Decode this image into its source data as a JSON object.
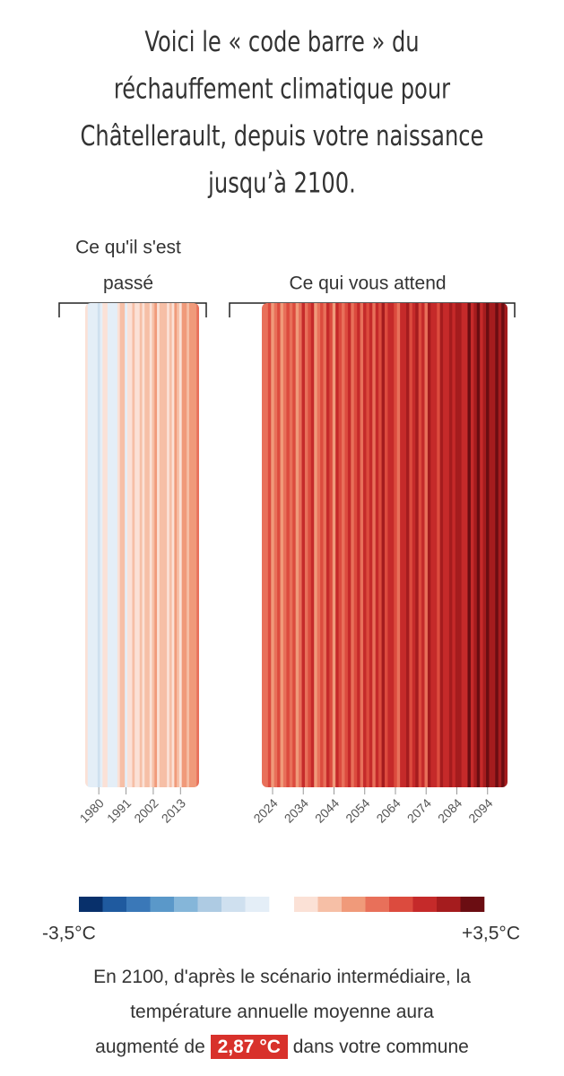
{
  "chart_data": {
    "type": "stripes",
    "title_lines": [
      "Voici le « code barre » du",
      "réchauffement climatique pour",
      "Châtellerault, depuis votre naissance",
      "jusqu’à 2100."
    ],
    "panels": [
      {
        "label_lines": [
          "Ce qu'il s'est",
          "passé"
        ],
        "x": [
          1975,
          1976,
          1977,
          1978,
          1979,
          1980,
          1981,
          1982,
          1983,
          1984,
          1985,
          1986,
          1987,
          1988,
          1989,
          1990,
          1991,
          1992,
          1993,
          1994,
          1995,
          1996,
          1997,
          1998,
          1999,
          2000,
          2001,
          2002,
          2003,
          2004,
          2005,
          2006,
          2007,
          2008,
          2009,
          2010,
          2011,
          2012,
          2013,
          2014,
          2015,
          2016,
          2017,
          2018,
          2019,
          2020
        ],
        "values": [
          0.1,
          -0.3,
          -0.1,
          -0.4,
          -0.2,
          -0.5,
          -0.3,
          0.2,
          0.1,
          -0.1,
          -0.2,
          -0.1,
          -0.2,
          0.3,
          0.5,
          0.5,
          -0.1,
          0.2,
          0.1,
          0.6,
          0.4,
          0.0,
          0.6,
          0.2,
          0.5,
          0.5,
          0.4,
          0.6,
          0.9,
          0.4,
          0.5,
          0.8,
          0.5,
          0.3,
          0.6,
          0.3,
          1.0,
          0.6,
          0.3,
          1.0,
          0.9,
          0.6,
          1.0,
          1.3,
          1.1,
          1.4
        ],
        "xticks": [
          1980,
          1991,
          2002,
          2013
        ]
      },
      {
        "label_lines": [
          "Ce qui vous attend"
        ],
        "x": [
          2021,
          2022,
          2023,
          2024,
          2025,
          2026,
          2027,
          2028,
          2029,
          2030,
          2031,
          2032,
          2033,
          2034,
          2035,
          2036,
          2037,
          2038,
          2039,
          2040,
          2041,
          2042,
          2043,
          2044,
          2045,
          2046,
          2047,
          2048,
          2049,
          2050,
          2051,
          2052,
          2053,
          2054,
          2055,
          2056,
          2057,
          2058,
          2059,
          2060,
          2061,
          2062,
          2063,
          2064,
          2065,
          2066,
          2067,
          2068,
          2069,
          2070,
          2071,
          2072,
          2073,
          2074,
          2075,
          2076,
          2077,
          2078,
          2079,
          2080,
          2081,
          2082,
          2083,
          2084,
          2085,
          2086,
          2087,
          2088,
          2089,
          2090,
          2091,
          2092,
          2093,
          2094,
          2095,
          2096,
          2097,
          2098,
          2099,
          2100
        ],
        "values": [
          1.6,
          1.4,
          2.0,
          1.0,
          1.5,
          1.9,
          1.2,
          1.7,
          2.1,
          1.5,
          1.8,
          1.1,
          1.6,
          2.2,
          1.4,
          1.9,
          2.3,
          1.3,
          1.7,
          2.0,
          1.5,
          2.2,
          1.8,
          1.2,
          2.4,
          1.9,
          1.6,
          2.1,
          2.5,
          1.7,
          2.0,
          2.3,
          1.5,
          2.6,
          1.9,
          2.2,
          1.4,
          2.4,
          2.0,
          2.7,
          1.8,
          2.3,
          2.5,
          2.1,
          1.6,
          2.6,
          2.2,
          2.8,
          1.9,
          2.4,
          2.7,
          2.0,
          2.5,
          1.7,
          2.9,
          2.3,
          2.6,
          2.1,
          2.8,
          2.4,
          2.5,
          2.9,
          2.2,
          2.7,
          3.0,
          2.4,
          2.6,
          3.1,
          2.3,
          2.8,
          3.2,
          2.6,
          2.9,
          3.3,
          2.7,
          3.0,
          3.4,
          2.8,
          3.1,
          2.9
        ],
        "xticks": [
          2024,
          2034,
          2044,
          2054,
          2064,
          2074,
          2084,
          2094
        ]
      }
    ],
    "colorlim": [
      -3.5,
      3.5
    ],
    "colorticks": [
      {
        "value": -3.5,
        "label": "-3,5°C"
      },
      {
        "value": 3.5,
        "label": "+3,5°C"
      }
    ],
    "colors_negative": [
      "#08306b",
      "#1f5a9f",
      "#3a78b8",
      "#5a98c9",
      "#85b6d9",
      "#aecbe3",
      "#cfe0ef",
      "#e4eef7"
    ],
    "colors_positive": [
      "#fbe1d6",
      "#f6bfa6",
      "#f09a7a",
      "#e8705a",
      "#dc4b3e",
      "#c52a2a",
      "#a51c1e",
      "#6b0d12"
    ],
    "footer": {
      "lines": [
        "En 2100, d'après le scénario intermédiaire, la",
        "température annuelle moyenne aura"
      ],
      "before": "augmenté de",
      "highlight": "2,87 °C",
      "after": "dans votre commune"
    }
  }
}
